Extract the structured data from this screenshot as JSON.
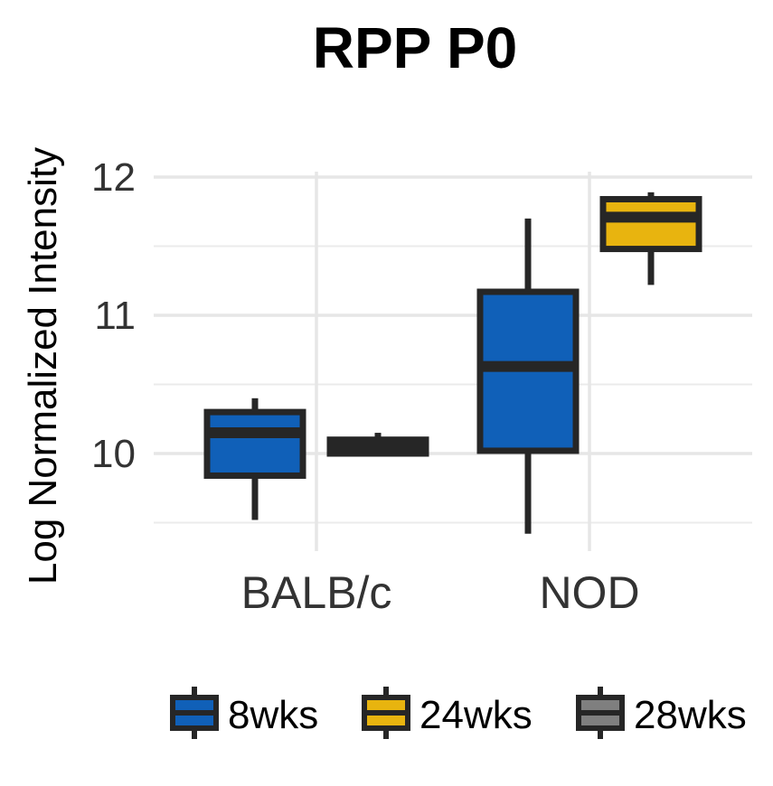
{
  "chart_data": {
    "type": "boxplot",
    "title": "RPP P0",
    "xlabel": "",
    "ylabel": "Log Normalized Intensity",
    "categories": [
      "BALB/c",
      "NOD"
    ],
    "ylim": [
      9.45,
      12.25
    ],
    "yticks": [
      10,
      11,
      12
    ],
    "grid": true,
    "legend_position": "bottom",
    "series": [
      {
        "name": "8wks",
        "color": "#1060b8",
        "boxes": [
          {
            "category": "BALB/c",
            "min": 9.52,
            "q1": 9.84,
            "median": 10.15,
            "q3": 10.3,
            "max": 10.4
          },
          {
            "category": "NOD",
            "min": 9.42,
            "q1": 10.02,
            "median": 10.63,
            "q3": 11.17,
            "max": 11.7
          }
        ]
      },
      {
        "name": "24wks",
        "color": "#e8b40f",
        "boxes": [
          {
            "category": "NOD",
            "min": 11.22,
            "q1": 11.48,
            "median": 11.71,
            "q3": 11.84,
            "max": 11.89
          }
        ]
      },
      {
        "name": "28wks",
        "color": "#7f7f7f",
        "boxes": [
          {
            "category": "BALB/c",
            "min": 9.99,
            "q1": 10.0,
            "median": 10.05,
            "q3": 10.1,
            "max": 10.15
          }
        ]
      }
    ]
  }
}
